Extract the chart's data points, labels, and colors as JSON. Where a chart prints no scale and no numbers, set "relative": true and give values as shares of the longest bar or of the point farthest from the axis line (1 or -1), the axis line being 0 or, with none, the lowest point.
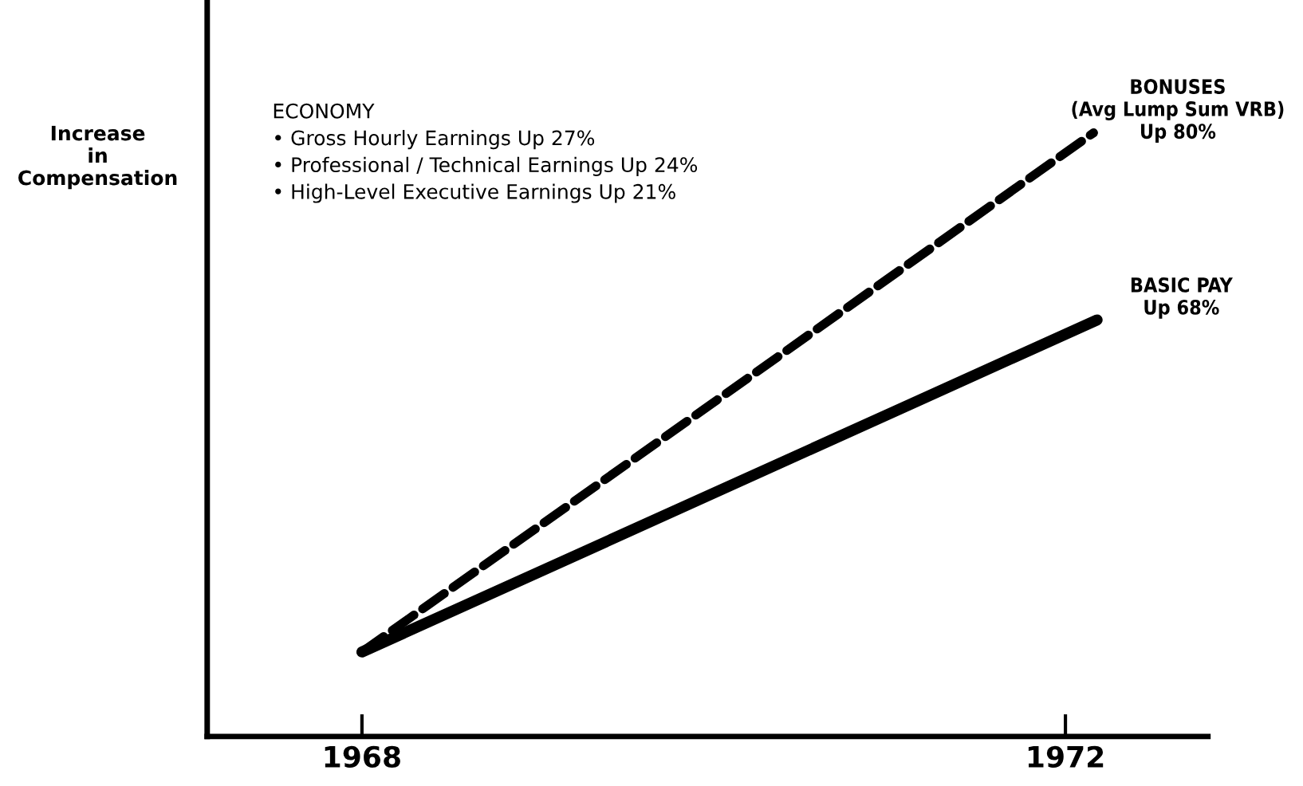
{
  "chart_data": {
    "type": "line",
    "relative": true,
    "ylabel": "Increase\nin\nCompensation",
    "xlim": [
      1967.12,
      1972.81
    ],
    "xticks": [
      1968,
      1972
    ],
    "annotations": [
      "ECONOMY\n• Gross Hourly Earnings Up 27%\n• Professional / Technical Earnings Up 24%\n• High-Level Executive Earnings Up 21%"
    ],
    "series": [
      {
        "name": "BONUSES\n(Avg Lump Sum VRB)\nUp 80%",
        "color": "#000000",
        "line_style": "dashed",
        "x": [
          1968,
          1972.16
        ],
        "values": [
          0.14,
          1
        ]
      },
      {
        "name": "BASIC PAY\nUp 68%",
        "color": "#000000",
        "line_style": "solid",
        "x": [
          1968,
          1972.18
        ],
        "values": [
          0.14,
          0.69
        ]
      }
    ],
    "legend": false,
    "grid": false,
    "marker": "none"
  }
}
